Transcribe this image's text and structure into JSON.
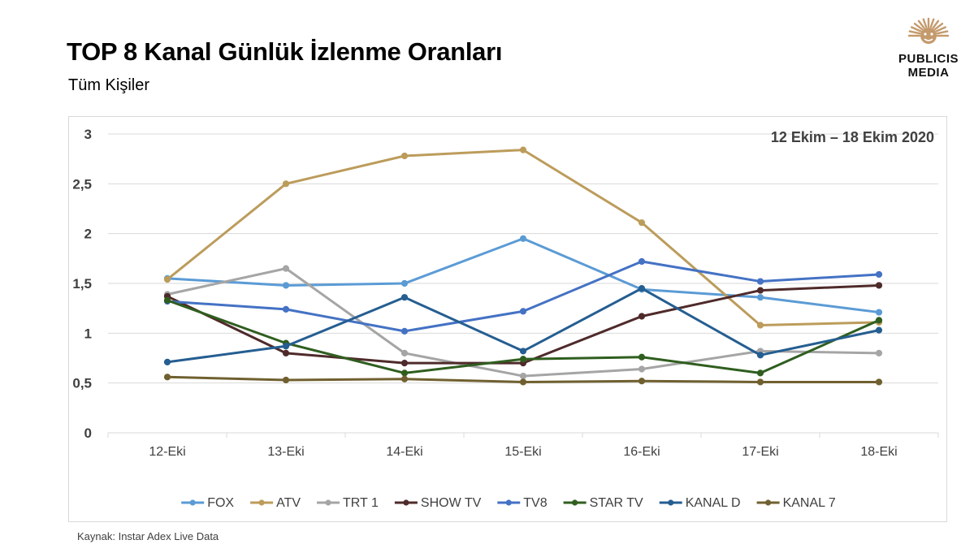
{
  "header": {
    "title": "TOP 8 Kanal Günlük İzlenme Oranları",
    "subtitle": "Tüm Kişiler"
  },
  "logo": {
    "line1": "PUBLICIS",
    "line2": "MEDIA",
    "color": "#c49a6c"
  },
  "footer": {
    "source": "Kaynak: Instar  Adex Live Data"
  },
  "chart_data": {
    "type": "line",
    "annotation": "12 Ekim – 18 Ekim 2020",
    "categories": [
      "12-Eki",
      "13-Eki",
      "14-Eki",
      "15-Eki",
      "16-Eki",
      "17-Eki",
      "18-Eki"
    ],
    "ylim": [
      0,
      3
    ],
    "yticks": [
      0,
      0.5,
      1,
      1.5,
      2,
      2.5,
      3
    ],
    "ytick_labels": [
      "0",
      "0,5",
      "1",
      "1,5",
      "2",
      "2,5",
      "3"
    ],
    "grid": true,
    "legend_position": "bottom",
    "series": [
      {
        "name": "FOX",
        "color": "#5b9bd5",
        "values": [
          1.55,
          1.48,
          1.5,
          1.95,
          1.44,
          1.36,
          1.21
        ]
      },
      {
        "name": "ATV",
        "color": "#bc9c5b",
        "values": [
          1.54,
          2.5,
          2.78,
          2.84,
          2.11,
          1.08,
          1.11
        ]
      },
      {
        "name": "TRT 1",
        "color": "#a5a5a5",
        "values": [
          1.39,
          1.65,
          0.8,
          0.57,
          0.64,
          0.82,
          0.8
        ]
      },
      {
        "name": "SHOW TV",
        "color": "#4f2a2a",
        "values": [
          1.37,
          0.8,
          0.7,
          0.7,
          1.17,
          1.43,
          1.48
        ]
      },
      {
        "name": "TV8",
        "color": "#4472c4",
        "values": [
          1.32,
          1.24,
          1.02,
          1.22,
          1.72,
          1.52,
          1.59
        ]
      },
      {
        "name": "STAR TV",
        "color": "#2f5e1f",
        "values": [
          1.33,
          0.9,
          0.6,
          0.74,
          0.76,
          0.6,
          1.13
        ]
      },
      {
        "name": "KANAL D",
        "color": "#255e91",
        "values": [
          0.71,
          0.87,
          1.36,
          0.82,
          1.45,
          0.78,
          1.03
        ]
      },
      {
        "name": "KANAL 7",
        "color": "#706030",
        "values": [
          0.56,
          0.53,
          0.54,
          0.51,
          0.52,
          0.51,
          0.51
        ]
      }
    ]
  }
}
